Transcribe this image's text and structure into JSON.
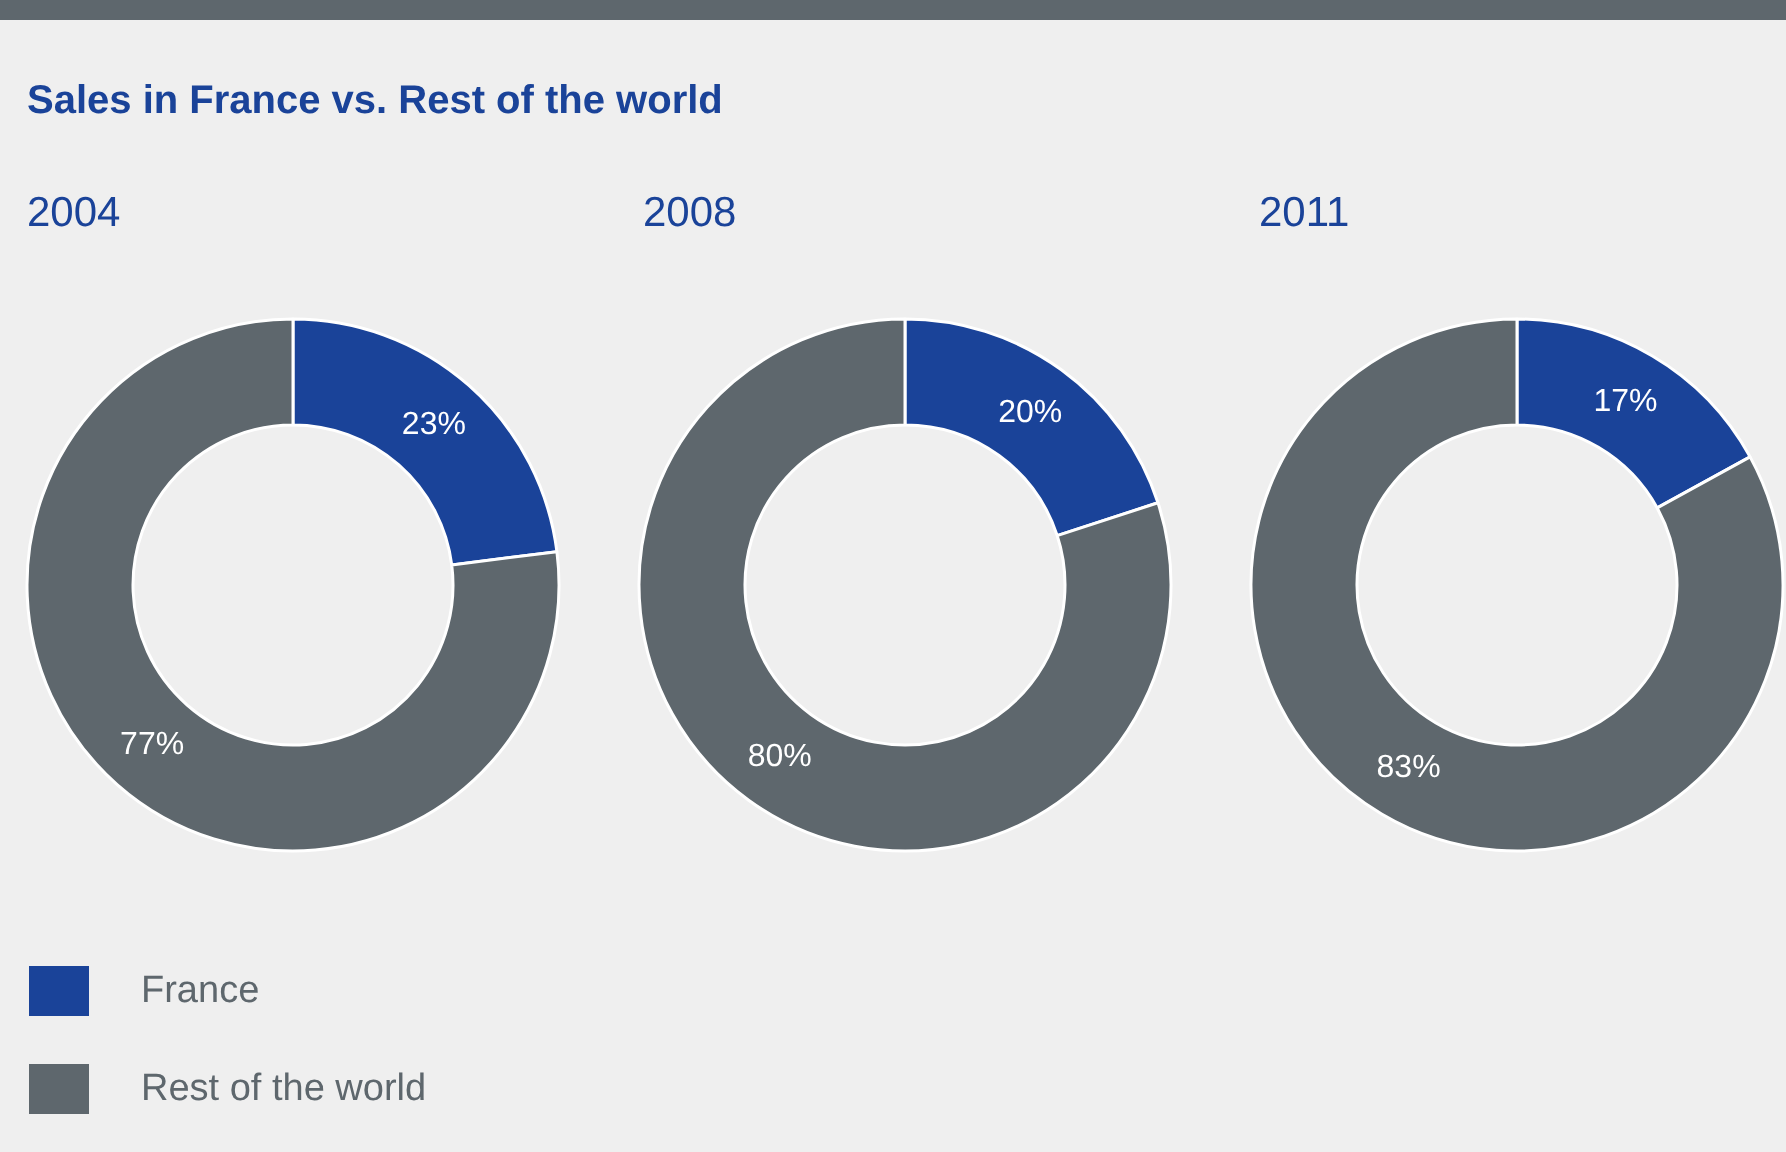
{
  "chart_data": [
    {
      "type": "donut",
      "title": "Sales in France vs. Rest of the world",
      "subtitle": "2004",
      "categories": [
        "France",
        "Rest of the world"
      ],
      "values": [
        23,
        77
      ],
      "colors": [
        "#1a4399",
        "#5e676d"
      ],
      "value_labels": [
        "23%",
        "77%"
      ],
      "legend": "bottom"
    },
    {
      "type": "donut",
      "subtitle": "2008",
      "categories": [
        null,
        null
      ],
      "values": [
        20,
        80
      ],
      "colors": [
        "#1a4399",
        "#5e676d"
      ],
      "value_labels": [
        "20%",
        "80%"
      ]
    },
    {
      "type": "donut",
      "subtitle": "2011",
      "categories": [
        null,
        null
      ],
      "values": [
        17,
        83
      ],
      "colors": [
        "#1a4399",
        "#5e676d"
      ],
      "value_labels": [
        "17%",
        "83%"
      ]
    }
  ]
}
